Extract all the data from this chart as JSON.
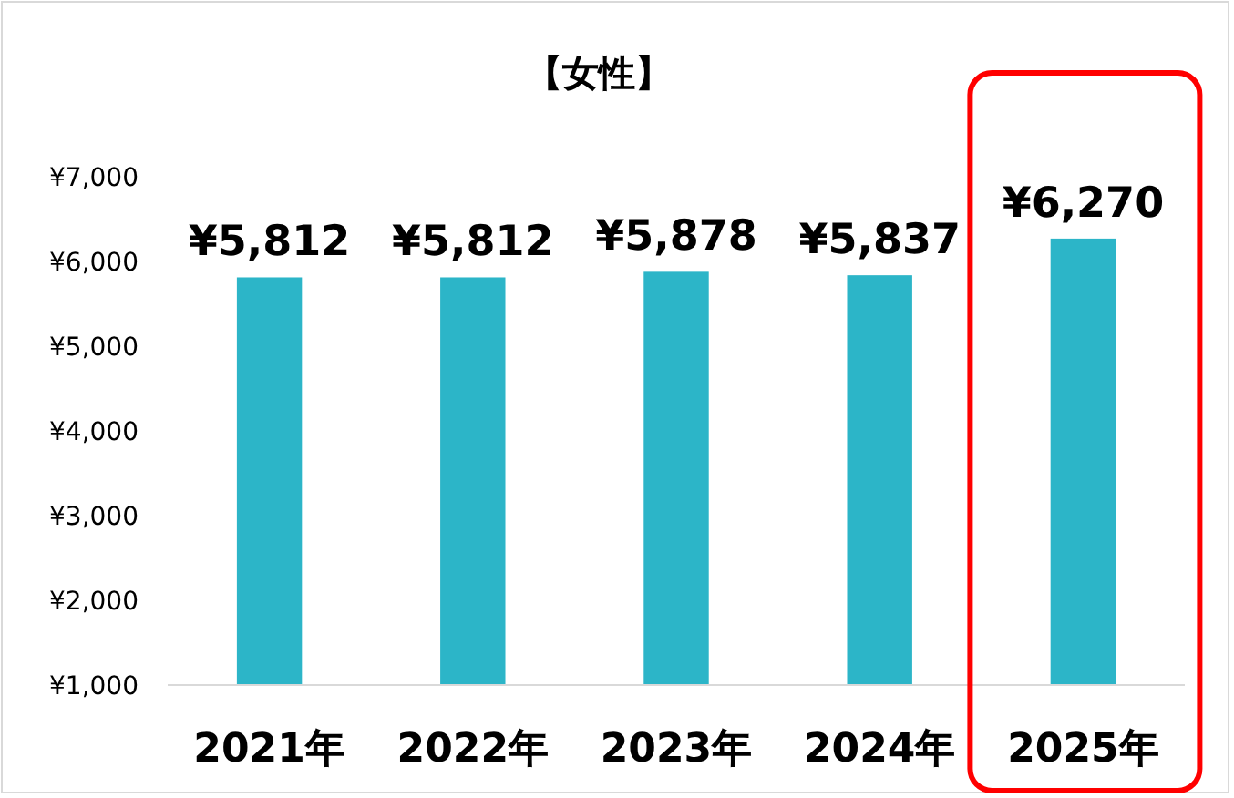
{
  "chart_data": {
    "type": "bar",
    "title": "【女性】",
    "categories": [
      "2021年",
      "2022年",
      "2023年",
      "2024年",
      "2025年"
    ],
    "values": [
      5812,
      5812,
      5878,
      5837,
      6270
    ],
    "value_labels": [
      "¥5,812",
      "¥5,812",
      "¥5,878",
      "¥5,837",
      "¥6,270"
    ],
    "color": "#2cb5c8",
    "ylim": [
      1000,
      7000
    ],
    "yticks": [
      {
        "value": 1000,
        "label": "¥1,000"
      },
      {
        "value": 2000,
        "label": "¥2,000"
      },
      {
        "value": 3000,
        "label": "¥3,000"
      },
      {
        "value": 4000,
        "label": "¥4,000"
      },
      {
        "value": 5000,
        "label": "¥5,000"
      },
      {
        "value": 6000,
        "label": "¥6,000"
      },
      {
        "value": 7000,
        "label": "¥7,000"
      }
    ],
    "grid": false
  }
}
